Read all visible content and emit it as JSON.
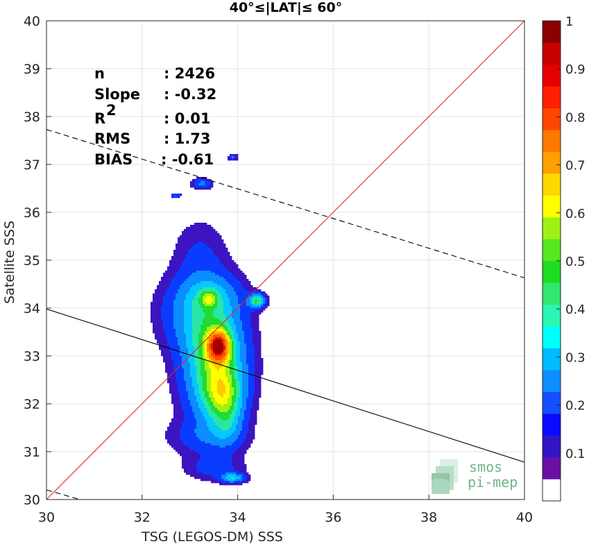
{
  "chart_data": {
    "type": "contour",
    "title": "40°≤|LAT|≤ 60°",
    "xlabel": "TSG (LEGOS-DM) SSS",
    "ylabel": "Satellite SSS",
    "xlim": [
      30,
      40
    ],
    "ylim": [
      30,
      40
    ],
    "xticks": [
      "30",
      "32",
      "34",
      "36",
      "38",
      "40"
    ],
    "yticks": [
      "30",
      "31",
      "32",
      "33",
      "34",
      "35",
      "36",
      "37",
      "38",
      "39",
      "40"
    ],
    "grid": true,
    "stats": [
      {
        "label": "n",
        "value": ": 2426"
      },
      {
        "label": "Slope",
        "value": ": -0.32"
      },
      {
        "label": "R",
        "sup": "2",
        "value": ": 0.01"
      },
      {
        "label": "RMS",
        "value": ": 1.73"
      },
      {
        "label": "BIAS",
        "value": ": -0.61"
      }
    ],
    "lines": {
      "identity": {
        "color": "#e8252a",
        "points": [
          [
            30,
            30
          ],
          [
            40,
            40
          ]
        ]
      },
      "regression": {
        "color": "#000000",
        "style": "solid",
        "points": [
          [
            30,
            33.98
          ],
          [
            40,
            30.78
          ]
        ]
      },
      "reg_upper": {
        "color": "#000000",
        "style": "dashed",
        "points": [
          [
            30,
            37.73
          ],
          [
            40,
            34.63
          ]
        ]
      },
      "reg_lower": {
        "color": "#000000",
        "style": "dashed",
        "points": [
          [
            30,
            30.2
          ],
          [
            30.7,
            30.0
          ]
        ]
      }
    },
    "density_peak": {
      "x": 33.6,
      "y": 33.2
    },
    "colorbar": {
      "ticks": [
        "0.1",
        "0.2",
        "0.3",
        "0.4",
        "0.5",
        "0.6",
        "0.7",
        "0.8",
        "0.9",
        "1"
      ],
      "range": [
        0,
        1
      ],
      "colors": [
        "#ffffff",
        "#6a0fa5",
        "#3414c8",
        "#0a0aff",
        "#1450ff",
        "#0d8fff",
        "#00bbff",
        "#00ffff",
        "#2cf5b4",
        "#30e86e",
        "#20dc20",
        "#58e820",
        "#a0f018",
        "#ffff00",
        "#ffd800",
        "#ffa000",
        "#ff7800",
        "#ff4600",
        "#ff1e00",
        "#e60000",
        "#c80000",
        "#8c0000"
      ]
    },
    "levels": [
      {
        "v": 0.05,
        "color": "#3c14c0"
      },
      {
        "v": 0.1,
        "color": "#0a3cff"
      },
      {
        "v": 0.18,
        "color": "#0b8cff"
      },
      {
        "v": 0.27,
        "color": "#04c8ff"
      },
      {
        "v": 0.35,
        "color": "#28e7a6"
      },
      {
        "v": 0.43,
        "color": "#20dc30"
      },
      {
        "v": 0.5,
        "color": "#a6f015"
      },
      {
        "v": 0.57,
        "color": "#ffff00"
      },
      {
        "v": 0.63,
        "color": "#ffc800"
      },
      {
        "v": 0.7,
        "color": "#ff8c00"
      },
      {
        "v": 0.8,
        "color": "#ff5000"
      },
      {
        "v": 0.9,
        "color": "#e81400"
      },
      {
        "v": 0.97,
        "color": "#a00000"
      }
    ]
  },
  "logo": {
    "line1": "smos",
    "line2": "pi-mep"
  }
}
